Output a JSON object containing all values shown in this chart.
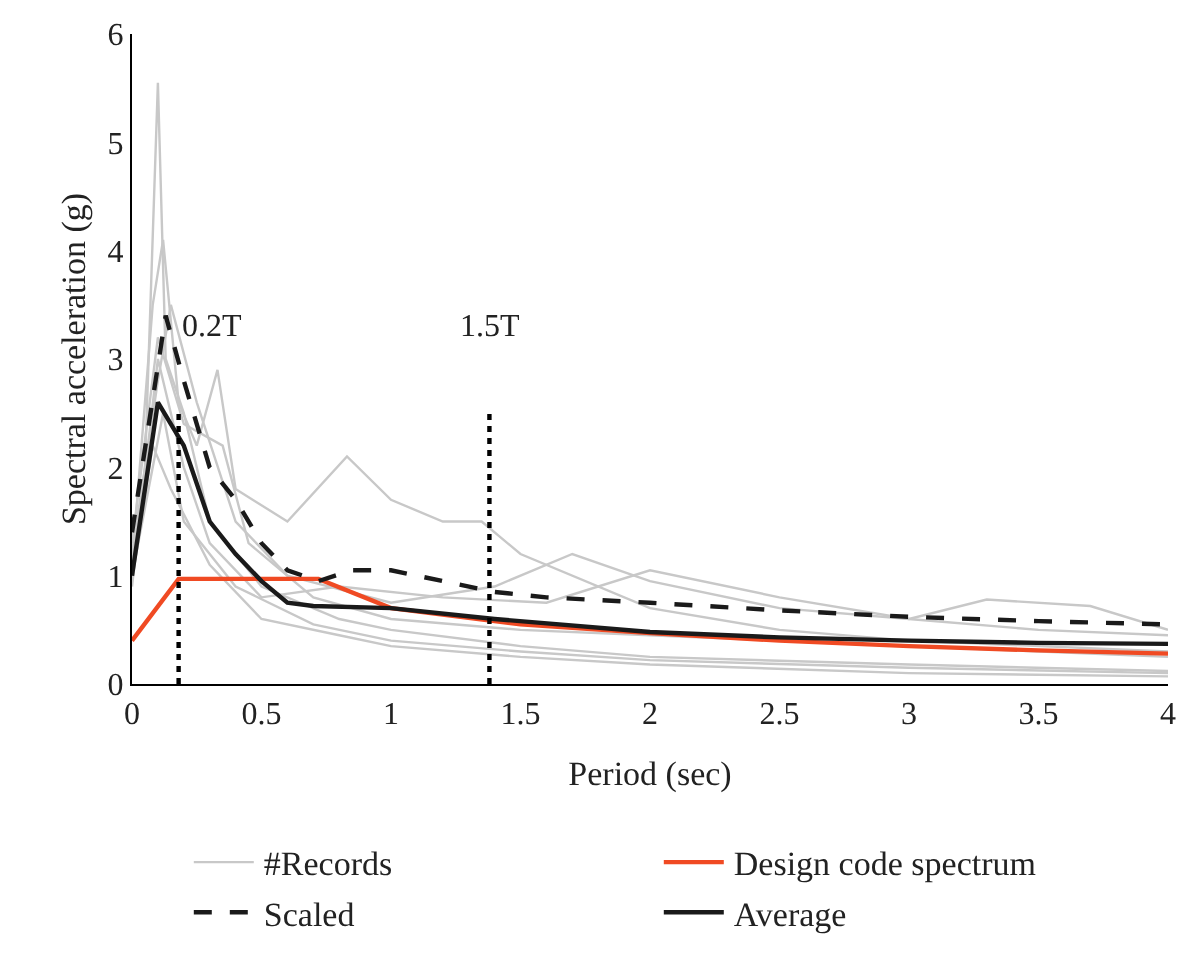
{
  "chart_data": {
    "type": "line",
    "xlabel": "Period (sec)",
    "ylabel": "Spectral acceleration (g)",
    "xlim": [
      0,
      4
    ],
    "xticks": [
      0,
      0.5,
      1,
      1.5,
      2,
      2.5,
      3,
      3.5,
      4
    ],
    "ylim": [
      0,
      6
    ],
    "yticks": [
      0,
      1,
      2,
      3,
      4,
      5,
      6
    ],
    "legend": "bottom",
    "marker": "none",
    "ref_lines": [
      {
        "axis": "x",
        "value": 0.18,
        "label": "0.2T",
        "line_style": "dotted",
        "color": "#000000"
      },
      {
        "axis": "x",
        "value": 1.38,
        "label": "1.5T",
        "line_style": "dotted",
        "color": "#000000"
      }
    ],
    "series": [
      {
        "name": "#Records",
        "color": "#c8c8c8",
        "line_style": "solid",
        "x": [
          0,
          0.05,
          0.1,
          0.13,
          0.2,
          0.3,
          0.5,
          0.8,
          1,
          1.5,
          2,
          3,
          4
        ],
        "values": [
          1.0,
          2.0,
          5.55,
          3.0,
          2.5,
          1.5,
          0.9,
          0.6,
          0.5,
          0.35,
          0.25,
          0.18,
          0.12
        ]
      },
      {
        "color": "#c8c8c8",
        "line_style": "solid",
        "x": [
          0,
          0.08,
          0.12,
          0.18,
          0.25,
          0.33,
          0.4,
          0.6,
          0.83,
          1,
          1.2,
          1.35,
          1.5,
          2,
          2.5,
          3,
          4
        ],
        "values": [
          1.1,
          3.5,
          4.1,
          2.6,
          2.2,
          2.9,
          1.8,
          1.5,
          2.1,
          1.7,
          1.5,
          1.5,
          1.2,
          0.7,
          0.5,
          0.4,
          0.3
        ]
      },
      {
        "color": "#c8c8c8",
        "line_style": "solid",
        "x": [
          0,
          0.1,
          0.2,
          0.3,
          0.5,
          0.8,
          1.2,
          1.6,
          2,
          2.5,
          3,
          3.5,
          4
        ],
        "values": [
          0.9,
          3.0,
          2.0,
          1.3,
          0.8,
          0.9,
          0.8,
          0.75,
          1.05,
          0.8,
          0.6,
          0.5,
          0.45
        ]
      },
      {
        "color": "#c8c8c8",
        "line_style": "solid",
        "x": [
          0,
          0.1,
          0.15,
          0.25,
          0.4,
          0.6,
          1,
          1.4,
          1.7,
          2,
          2.5,
          3,
          3.3,
          3.7,
          4
        ],
        "values": [
          1.2,
          2.8,
          3.5,
          2.6,
          1.5,
          1.0,
          0.75,
          0.9,
          1.2,
          0.95,
          0.7,
          0.6,
          0.78,
          0.72,
          0.5
        ]
      },
      {
        "color": "#c8c8c8",
        "line_style": "solid",
        "x": [
          0,
          0.08,
          0.15,
          0.3,
          0.5,
          0.8,
          1,
          1.5,
          2,
          3,
          4
        ],
        "values": [
          0.95,
          2.2,
          1.8,
          1.1,
          0.6,
          0.45,
          0.35,
          0.25,
          0.18,
          0.1,
          0.07
        ]
      },
      {
        "color": "#c8c8c8",
        "line_style": "solid",
        "x": [
          0,
          0.1,
          0.2,
          0.35,
          0.45,
          0.7,
          1,
          1.5,
          2,
          3,
          4
        ],
        "values": [
          1.3,
          3.2,
          2.4,
          2.2,
          1.3,
          0.8,
          0.6,
          0.5,
          0.45,
          0.35,
          0.25
        ]
      },
      {
        "color": "#c8c8c8",
        "line_style": "solid",
        "x": [
          0,
          0.12,
          0.2,
          0.4,
          0.7,
          1,
          1.5,
          2,
          3,
          4
        ],
        "values": [
          1.0,
          2.5,
          1.5,
          0.9,
          0.55,
          0.4,
          0.3,
          0.22,
          0.15,
          0.1
        ]
      },
      {
        "name": "Design code spectrum",
        "color": "#f04a23",
        "line_style": "solid",
        "x": [
          0,
          0.18,
          0.72,
          1,
          1.5,
          2,
          2.5,
          3,
          3.5,
          4
        ],
        "values": [
          0.4,
          0.97,
          0.97,
          0.7,
          0.55,
          0.47,
          0.4,
          0.35,
          0.31,
          0.28
        ]
      },
      {
        "name": "Scaled",
        "color": "#1a1a1a",
        "line_style": "dashed",
        "x": [
          0,
          0.13,
          0.2,
          0.3,
          0.4,
          0.5,
          0.6,
          0.72,
          0.85,
          1,
          1.2,
          1.4,
          1.6,
          2,
          2.5,
          3,
          3.5,
          4
        ],
        "values": [
          1.4,
          3.4,
          2.8,
          2.0,
          1.7,
          1.3,
          1.05,
          0.95,
          1.05,
          1.05,
          0.95,
          0.85,
          0.8,
          0.75,
          0.68,
          0.62,
          0.58,
          0.55
        ]
      },
      {
        "name": "Average",
        "color": "#1a1a1a",
        "line_style": "solid",
        "x": [
          0,
          0.1,
          0.2,
          0.3,
          0.4,
          0.5,
          0.6,
          0.7,
          1,
          1.4,
          2,
          2.5,
          3,
          3.5,
          4
        ],
        "values": [
          1.0,
          2.6,
          2.2,
          1.5,
          1.2,
          0.95,
          0.75,
          0.72,
          0.7,
          0.6,
          0.48,
          0.43,
          0.4,
          0.38,
          0.37
        ]
      }
    ]
  }
}
